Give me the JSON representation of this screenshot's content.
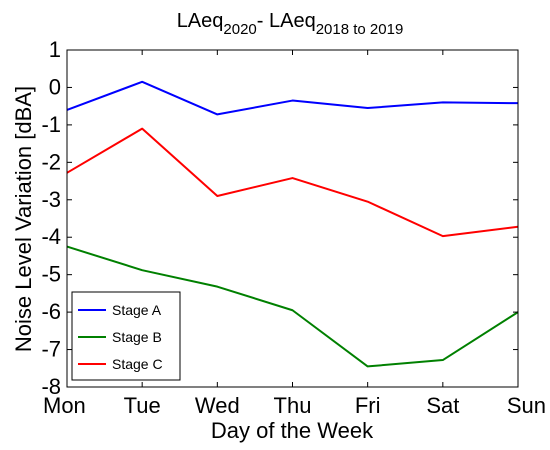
{
  "chart_data": {
    "type": "line",
    "title": {
      "main1": "LAeq",
      "sub1": "2020",
      "main2": "- LAeq",
      "sub2": "2018 to 2019"
    },
    "xlabel": "Day of the Week",
    "ylabel": "Noise Level Variation [dBA]",
    "categories": [
      "Mon",
      "Tue",
      "Wed",
      "Thu",
      "Fri",
      "Sat",
      "Sun"
    ],
    "ylim": [
      -8,
      1
    ],
    "yticks": [
      1,
      0,
      -1,
      -2,
      -3,
      -4,
      -5,
      -6,
      -7,
      -8
    ],
    "yticks_labels": [
      "1",
      "0",
      "-1",
      "-2",
      "-3",
      "-4",
      "-5",
      "-6",
      "-7",
      "-8"
    ],
    "legend_position": "bottom-left",
    "grid": false,
    "series": [
      {
        "name": "Stage A",
        "color": "#0000ff",
        "values": [
          -0.6,
          0.15,
          -0.72,
          -0.35,
          -0.55,
          -0.4,
          -0.42
        ]
      },
      {
        "name": "Stage B",
        "color": "#008000",
        "values": [
          -4.25,
          -4.88,
          -5.32,
          -5.95,
          -7.45,
          -7.28,
          -6.0
        ]
      },
      {
        "name": "Stage C",
        "color": "#ff0000",
        "values": [
          -2.28,
          -1.1,
          -2.9,
          -2.42,
          -3.05,
          -3.97,
          -3.72
        ]
      }
    ]
  }
}
